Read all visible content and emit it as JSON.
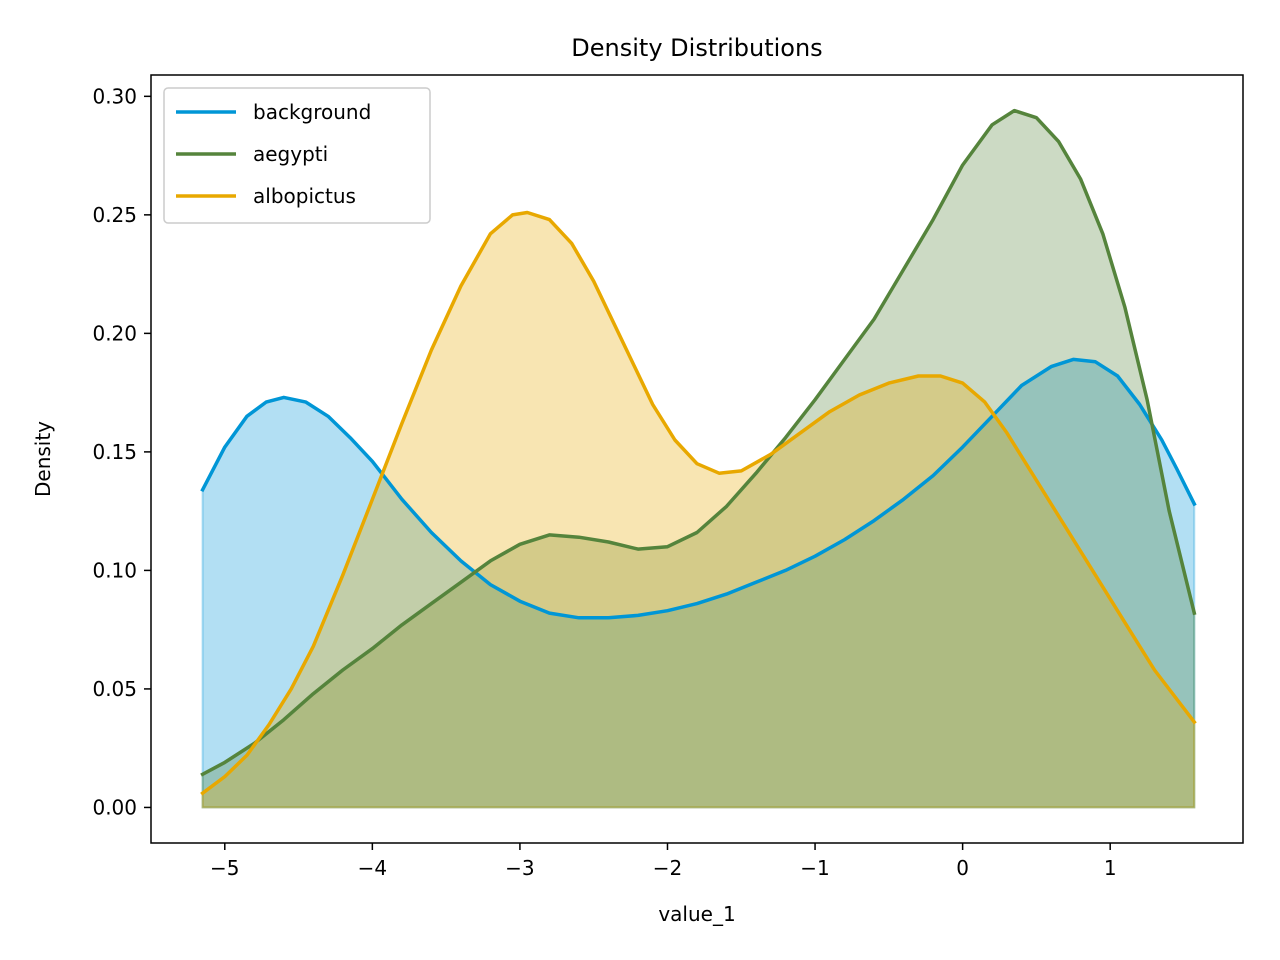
{
  "chart_data": {
    "type": "area",
    "title": "Density Distributions",
    "xlabel": "value_1",
    "ylabel": "Density",
    "xlim": [
      -5.5,
      1.9
    ],
    "ylim": [
      -0.015,
      0.309
    ],
    "xticks": [
      -5,
      -4,
      -3,
      -2,
      -1,
      0,
      1
    ],
    "xtick_labels": [
      "−5",
      "−4",
      "−3",
      "−2",
      "−1",
      "0",
      "1"
    ],
    "yticks": [
      0.0,
      0.05,
      0.1,
      0.15,
      0.2,
      0.25,
      0.3
    ],
    "ytick_labels": [
      "0.00",
      "0.05",
      "0.10",
      "0.15",
      "0.20",
      "0.25",
      "0.30"
    ],
    "grid": false,
    "legend_position": "top-left",
    "series": [
      {
        "name": "background",
        "color": "#0096d6",
        "x": [
          -5.15,
          -5.0,
          -4.85,
          -4.72,
          -4.6,
          -4.45,
          -4.3,
          -4.15,
          -4.0,
          -3.8,
          -3.6,
          -3.4,
          -3.2,
          -3.0,
          -2.8,
          -2.6,
          -2.4,
          -2.2,
          -2.0,
          -1.8,
          -1.6,
          -1.4,
          -1.2,
          -1.0,
          -0.8,
          -0.6,
          -0.4,
          -0.2,
          0.0,
          0.2,
          0.4,
          0.6,
          0.75,
          0.9,
          1.05,
          1.2,
          1.35,
          1.45,
          1.57
        ],
        "y": [
          0.134,
          0.152,
          0.165,
          0.171,
          0.173,
          0.171,
          0.165,
          0.156,
          0.146,
          0.13,
          0.116,
          0.104,
          0.094,
          0.087,
          0.082,
          0.08,
          0.08,
          0.081,
          0.083,
          0.086,
          0.09,
          0.095,
          0.1,
          0.106,
          0.113,
          0.121,
          0.13,
          0.14,
          0.152,
          0.165,
          0.178,
          0.186,
          0.189,
          0.188,
          0.182,
          0.17,
          0.155,
          0.143,
          0.128
        ]
      },
      {
        "name": "aegypti",
        "color": "#55843c",
        "x": [
          -5.15,
          -5.0,
          -4.8,
          -4.6,
          -4.4,
          -4.2,
          -4.0,
          -3.8,
          -3.6,
          -3.4,
          -3.2,
          -3.0,
          -2.8,
          -2.6,
          -2.4,
          -2.2,
          -2.0,
          -1.8,
          -1.6,
          -1.4,
          -1.2,
          -1.0,
          -0.8,
          -0.6,
          -0.4,
          -0.2,
          0.0,
          0.2,
          0.35,
          0.5,
          0.65,
          0.8,
          0.95,
          1.1,
          1.25,
          1.4,
          1.57
        ],
        "y": [
          0.014,
          0.019,
          0.027,
          0.037,
          0.048,
          0.058,
          0.067,
          0.077,
          0.086,
          0.095,
          0.104,
          0.111,
          0.115,
          0.114,
          0.112,
          0.109,
          0.11,
          0.116,
          0.127,
          0.141,
          0.156,
          0.172,
          0.189,
          0.206,
          0.227,
          0.248,
          0.271,
          0.288,
          0.294,
          0.291,
          0.281,
          0.265,
          0.242,
          0.211,
          0.172,
          0.125,
          0.082
        ]
      },
      {
        "name": "albopictus",
        "color": "#e8a800",
        "x": [
          -5.15,
          -5.0,
          -4.85,
          -4.7,
          -4.55,
          -4.4,
          -4.2,
          -4.0,
          -3.8,
          -3.6,
          -3.4,
          -3.2,
          -3.05,
          -2.95,
          -2.8,
          -2.65,
          -2.5,
          -2.3,
          -2.1,
          -1.95,
          -1.8,
          -1.65,
          -1.5,
          -1.3,
          -1.1,
          -0.9,
          -0.7,
          -0.5,
          -0.3,
          -0.15,
          0.0,
          0.15,
          0.3,
          0.5,
          0.7,
          0.9,
          1.1,
          1.3,
          1.57
        ],
        "y": [
          0.006,
          0.013,
          0.022,
          0.035,
          0.05,
          0.068,
          0.098,
          0.13,
          0.162,
          0.193,
          0.22,
          0.242,
          0.25,
          0.251,
          0.248,
          0.238,
          0.222,
          0.196,
          0.17,
          0.155,
          0.145,
          0.141,
          0.142,
          0.149,
          0.158,
          0.167,
          0.174,
          0.179,
          0.182,
          0.182,
          0.179,
          0.171,
          0.158,
          0.138,
          0.118,
          0.098,
          0.078,
          0.058,
          0.036
        ]
      }
    ]
  }
}
